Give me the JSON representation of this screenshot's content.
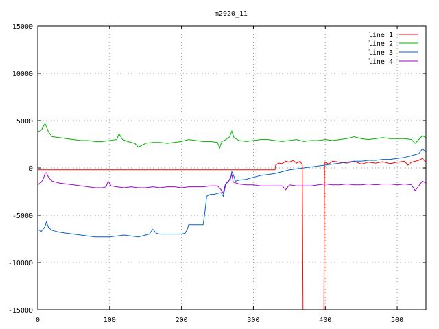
{
  "chart_data": {
    "type": "line",
    "title": "m2920_11",
    "xlabel": "",
    "ylabel": "",
    "xlim": [
      0,
      540
    ],
    "ylim": [
      -15000,
      15000
    ],
    "xticks": [
      0,
      100,
      200,
      300,
      400,
      500
    ],
    "yticks": [
      -15000,
      -10000,
      -5000,
      0,
      5000,
      10000,
      15000
    ],
    "grid": true,
    "legend_position": "top-right",
    "series": [
      {
        "name": "line 1",
        "color": "#ff0000",
        "points": [
          [
            0,
            -200
          ],
          [
            100,
            -200
          ],
          [
            200,
            -200
          ],
          [
            300,
            -200
          ],
          [
            330,
            -200
          ],
          [
            331,
            300
          ],
          [
            335,
            500
          ],
          [
            340,
            450
          ],
          [
            345,
            700
          ],
          [
            350,
            600
          ],
          [
            355,
            800
          ],
          [
            360,
            500
          ],
          [
            365,
            700
          ],
          [
            368,
            300
          ],
          [
            369,
            -15000
          ],
          [
            398,
            -15000
          ],
          [
            399,
            600
          ],
          [
            405,
            400
          ],
          [
            410,
            700
          ],
          [
            420,
            600
          ],
          [
            430,
            500
          ],
          [
            440,
            700
          ],
          [
            450,
            400
          ],
          [
            460,
            600
          ],
          [
            470,
            500
          ],
          [
            480,
            650
          ],
          [
            490,
            450
          ],
          [
            500,
            600
          ],
          [
            510,
            700
          ],
          [
            515,
            300
          ],
          [
            520,
            600
          ],
          [
            530,
            800
          ],
          [
            535,
            1000
          ],
          [
            540,
            600
          ]
        ]
      },
      {
        "name": "line 2",
        "color": "#00b000",
        "points": [
          [
            0,
            3800
          ],
          [
            5,
            4000
          ],
          [
            10,
            4700
          ],
          [
            15,
            3800
          ],
          [
            20,
            3300
          ],
          [
            30,
            3200
          ],
          [
            40,
            3100
          ],
          [
            50,
            3000
          ],
          [
            60,
            2900
          ],
          [
            70,
            2900
          ],
          [
            80,
            2800
          ],
          [
            90,
            2800
          ],
          [
            100,
            2900
          ],
          [
            110,
            3000
          ],
          [
            113,
            3600
          ],
          [
            118,
            3000
          ],
          [
            125,
            2800
          ],
          [
            135,
            2600
          ],
          [
            140,
            2200
          ],
          [
            145,
            2400
          ],
          [
            150,
            2600
          ],
          [
            160,
            2700
          ],
          [
            170,
            2700
          ],
          [
            180,
            2600
          ],
          [
            190,
            2700
          ],
          [
            200,
            2800
          ],
          [
            210,
            3000
          ],
          [
            220,
            2900
          ],
          [
            230,
            2800
          ],
          [
            240,
            2800
          ],
          [
            250,
            2700
          ],
          [
            253,
            2100
          ],
          [
            256,
            2800
          ],
          [
            262,
            3000
          ],
          [
            267,
            3300
          ],
          [
            270,
            3900
          ],
          [
            273,
            3200
          ],
          [
            280,
            2900
          ],
          [
            290,
            2800
          ],
          [
            300,
            2900
          ],
          [
            310,
            3000
          ],
          [
            320,
            3000
          ],
          [
            330,
            2900
          ],
          [
            340,
            2800
          ],
          [
            350,
            2900
          ],
          [
            360,
            3000
          ],
          [
            370,
            2800
          ],
          [
            380,
            2900
          ],
          [
            390,
            2900
          ],
          [
            400,
            3000
          ],
          [
            410,
            2900
          ],
          [
            420,
            3000
          ],
          [
            430,
            3100
          ],
          [
            440,
            3300
          ],
          [
            450,
            3100
          ],
          [
            460,
            3000
          ],
          [
            470,
            3100
          ],
          [
            480,
            3200
          ],
          [
            490,
            3100
          ],
          [
            500,
            3100
          ],
          [
            510,
            3100
          ],
          [
            520,
            3000
          ],
          [
            525,
            2600
          ],
          [
            530,
            3000
          ],
          [
            535,
            3400
          ],
          [
            540,
            3200
          ]
        ]
      },
      {
        "name": "line 3",
        "color": "#0060d0",
        "points": [
          [
            0,
            -6500
          ],
          [
            5,
            -6700
          ],
          [
            10,
            -6200
          ],
          [
            12,
            -5700
          ],
          [
            15,
            -6300
          ],
          [
            20,
            -6600
          ],
          [
            30,
            -6800
          ],
          [
            40,
            -6900
          ],
          [
            50,
            -7000
          ],
          [
            60,
            -7100
          ],
          [
            70,
            -7200
          ],
          [
            80,
            -7300
          ],
          [
            90,
            -7300
          ],
          [
            100,
            -7300
          ],
          [
            110,
            -7200
          ],
          [
            120,
            -7100
          ],
          [
            130,
            -7200
          ],
          [
            140,
            -7300
          ],
          [
            150,
            -7100
          ],
          [
            155,
            -7000
          ],
          [
            160,
            -6500
          ],
          [
            165,
            -6900
          ],
          [
            170,
            -7000
          ],
          [
            180,
            -7000
          ],
          [
            190,
            -7000
          ],
          [
            200,
            -7000
          ],
          [
            205,
            -6900
          ],
          [
            208,
            -6500
          ],
          [
            210,
            -6000
          ],
          [
            220,
            -6000
          ],
          [
            230,
            -6000
          ],
          [
            232,
            -5000
          ],
          [
            235,
            -3000
          ],
          [
            240,
            -2800
          ],
          [
            245,
            -2800
          ],
          [
            250,
            -2700
          ],
          [
            255,
            -2600
          ],
          [
            258,
            -3000
          ],
          [
            262,
            -1600
          ],
          [
            265,
            -1400
          ],
          [
            268,
            -1200
          ],
          [
            270,
            -400
          ],
          [
            272,
            -700
          ],
          [
            275,
            -1400
          ],
          [
            280,
            -1300
          ],
          [
            290,
            -1200
          ],
          [
            300,
            -1000
          ],
          [
            310,
            -800
          ],
          [
            320,
            -700
          ],
          [
            330,
            -600
          ],
          [
            340,
            -400
          ],
          [
            345,
            -300
          ],
          [
            350,
            -200
          ],
          [
            360,
            -100
          ],
          [
            370,
            0
          ],
          [
            380,
            100
          ],
          [
            390,
            200
          ],
          [
            400,
            300
          ],
          [
            410,
            400
          ],
          [
            420,
            500
          ],
          [
            430,
            600
          ],
          [
            440,
            700
          ],
          [
            450,
            700
          ],
          [
            460,
            800
          ],
          [
            470,
            800
          ],
          [
            480,
            900
          ],
          [
            490,
            900
          ],
          [
            500,
            1000
          ],
          [
            510,
            1100
          ],
          [
            520,
            1300
          ],
          [
            530,
            1500
          ],
          [
            535,
            2000
          ],
          [
            540,
            1700
          ]
        ]
      },
      {
        "name": "line 4",
        "color": "#a000d0",
        "points": [
          [
            0,
            -1800
          ],
          [
            5,
            -1500
          ],
          [
            8,
            -1100
          ],
          [
            10,
            -600
          ],
          [
            12,
            -500
          ],
          [
            15,
            -1000
          ],
          [
            20,
            -1400
          ],
          [
            30,
            -1600
          ],
          [
            40,
            -1700
          ],
          [
            50,
            -1800
          ],
          [
            60,
            -1900
          ],
          [
            70,
            -2000
          ],
          [
            80,
            -2100
          ],
          [
            90,
            -2100
          ],
          [
            95,
            -2000
          ],
          [
            98,
            -1400
          ],
          [
            102,
            -1900
          ],
          [
            110,
            -2000
          ],
          [
            120,
            -2100
          ],
          [
            130,
            -2000
          ],
          [
            140,
            -2100
          ],
          [
            150,
            -2100
          ],
          [
            160,
            -2000
          ],
          [
            170,
            -2100
          ],
          [
            180,
            -2000
          ],
          [
            190,
            -2000
          ],
          [
            200,
            -2100
          ],
          [
            210,
            -2000
          ],
          [
            220,
            -2000
          ],
          [
            230,
            -2000
          ],
          [
            240,
            -1900
          ],
          [
            250,
            -1900
          ],
          [
            255,
            -2300
          ],
          [
            258,
            -2700
          ],
          [
            261,
            -1700
          ],
          [
            265,
            -1500
          ],
          [
            270,
            -700
          ],
          [
            272,
            -1500
          ],
          [
            280,
            -1700
          ],
          [
            290,
            -1800
          ],
          [
            300,
            -1800
          ],
          [
            310,
            -1900
          ],
          [
            320,
            -1900
          ],
          [
            330,
            -1900
          ],
          [
            340,
            -1900
          ],
          [
            345,
            -2300
          ],
          [
            350,
            -1800
          ],
          [
            360,
            -1900
          ],
          [
            370,
            -1900
          ],
          [
            380,
            -1900
          ],
          [
            390,
            -1800
          ],
          [
            400,
            -1700
          ],
          [
            410,
            -1800
          ],
          [
            420,
            -1800
          ],
          [
            430,
            -1700
          ],
          [
            440,
            -1800
          ],
          [
            450,
            -1800
          ],
          [
            460,
            -1700
          ],
          [
            470,
            -1800
          ],
          [
            480,
            -1700
          ],
          [
            490,
            -1700
          ],
          [
            500,
            -1800
          ],
          [
            510,
            -1700
          ],
          [
            520,
            -1800
          ],
          [
            525,
            -2400
          ],
          [
            530,
            -1900
          ],
          [
            535,
            -1400
          ],
          [
            540,
            -1600
          ]
        ]
      }
    ]
  }
}
